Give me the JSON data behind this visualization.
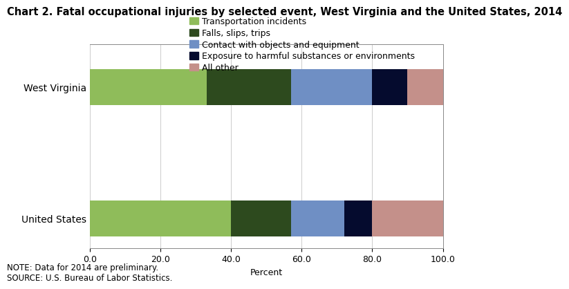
{
  "title": "Chart 2. Fatal occupational injuries by selected event, West Virginia and the United States, 2014",
  "categories": [
    "West Virginia",
    "United States"
  ],
  "segments": [
    {
      "label": "Transportation incidents",
      "color": "#8fbc5a",
      "values": [
        33.0,
        40.0
      ]
    },
    {
      "label": "Falls, slips, trips",
      "color": "#2d4a1e",
      "values": [
        24.0,
        17.0
      ]
    },
    {
      "label": "Contact with objects and equipment",
      "color": "#6f8fc4",
      "values": [
        23.0,
        15.0
      ]
    },
    {
      "label": "Exposure to harmful substances or environments",
      "color": "#050b2e",
      "values": [
        10.0,
        8.0
      ]
    },
    {
      "label": "All other",
      "color": "#c4908a",
      "values": [
        10.0,
        20.0
      ]
    }
  ],
  "xlabel": "Percent",
  "xlim": [
    0,
    100
  ],
  "xticks": [
    0.0,
    20.0,
    40.0,
    60.0,
    80.0,
    100.0
  ],
  "xticklabels": [
    "0.0",
    "20.0",
    "40.0",
    "60.0",
    "80.0",
    "100.0"
  ],
  "note": "NOTE: Data for 2014 are preliminary.\nSOURCE: U.S. Bureau of Labor Statistics.",
  "background_color": "#ffffff",
  "title_fontsize": 10.5,
  "legend_fontsize": 9,
  "tick_fontsize": 9,
  "ylabel_fontsize": 10,
  "note_fontsize": 8.5
}
